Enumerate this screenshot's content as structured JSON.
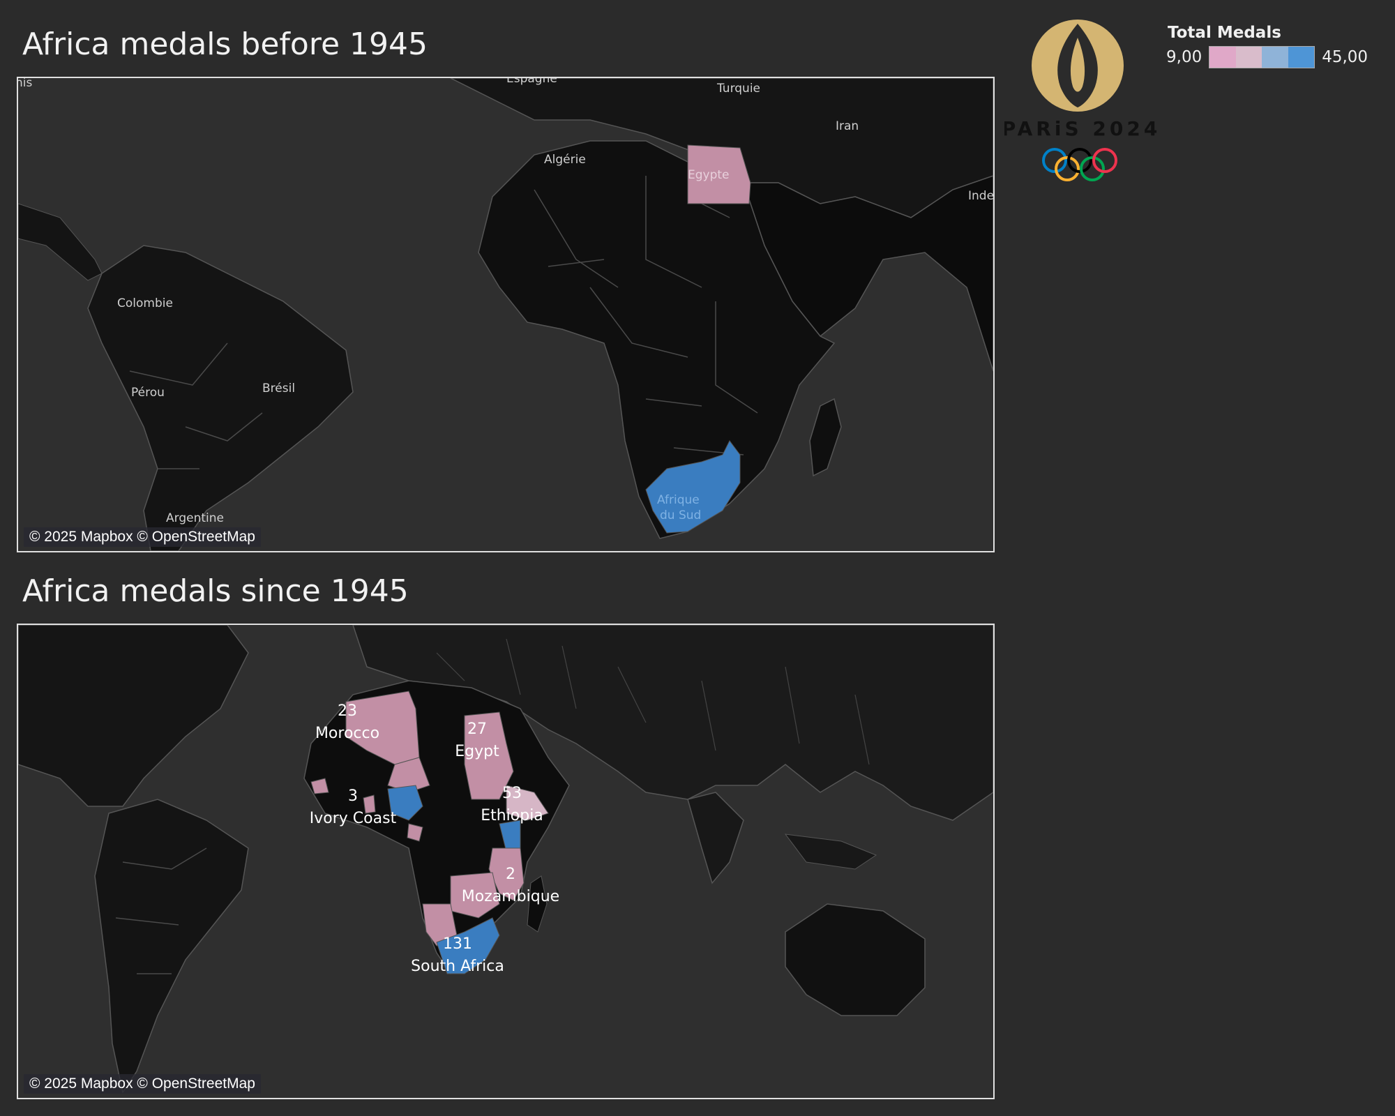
{
  "top": {
    "title": "Africa medals before 1945",
    "attribution": "© 2025 Mapbox © OpenStreetMap",
    "place_labels": [
      {
        "key": "nis",
        "text": "nis"
      },
      {
        "key": "espagne",
        "text": "Espagne"
      },
      {
        "key": "turquie",
        "text": "Turquie"
      },
      {
        "key": "iran",
        "text": "Iran"
      },
      {
        "key": "algerie",
        "text": "Algérie"
      },
      {
        "key": "inde",
        "text": "Inde"
      },
      {
        "key": "colombie",
        "text": "Colombie"
      },
      {
        "key": "perou",
        "text": "Pérou"
      },
      {
        "key": "bresil",
        "text": "Brésil"
      },
      {
        "key": "argentine",
        "text": "Argentine"
      },
      {
        "key": "egypte",
        "text": "Egypte"
      },
      {
        "key": "afrique1",
        "text": "Afrique"
      },
      {
        "key": "afrique2",
        "text": "du Sud"
      }
    ]
  },
  "bottom": {
    "title": "Africa medals since 1945",
    "attribution": "© 2025 Mapbox © OpenStreetMap",
    "country_labels": [
      {
        "key": "morocco",
        "value": "23",
        "name": "Morocco"
      },
      {
        "key": "egypt",
        "value": "27",
        "name": "Egypt"
      },
      {
        "key": "ethiopia",
        "value": "53",
        "name": "Ethiopia"
      },
      {
        "key": "ivory",
        "value": "3",
        "name": "Ivory Coast"
      },
      {
        "key": "mozambique",
        "value": "2",
        "name": "Mozambique"
      },
      {
        "key": "southafrica",
        "value": "131",
        "name": "South Africa"
      }
    ]
  },
  "legend": {
    "title": "Total Medals",
    "min": "9,00",
    "max": "45,00",
    "colors": [
      "#e0a8c8",
      "#d9bccb",
      "#8fb3d8",
      "#4e95d6"
    ]
  },
  "logo": {
    "text": "PARiS 2024",
    "ring_colors": [
      "#0081c8",
      "#fcb131",
      "#000000",
      "#00a651",
      "#ee334e"
    ]
  },
  "colors": {
    "pink": "#c28fa5",
    "blue": "#3a7dc0",
    "land": "#111111",
    "ocean": "#2f2f2f",
    "gold": "#d4b572"
  }
}
